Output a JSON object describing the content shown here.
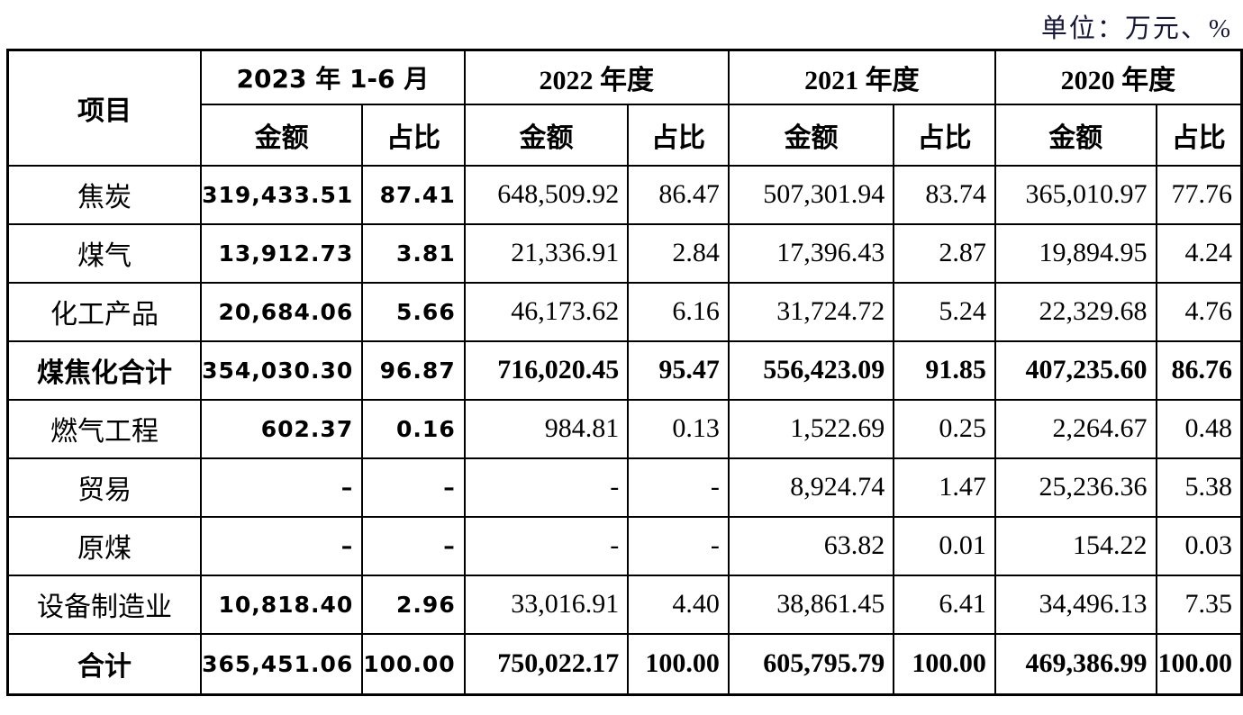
{
  "unit_label": "单位：万元、%",
  "table": {
    "item_header": "项目",
    "period_headers": [
      "2023 年 1-6 月",
      "2022 年度",
      "2021 年度",
      "2020 年度"
    ],
    "sub_headers": {
      "amount": "金额",
      "ratio": "占比"
    },
    "rows": [
      {
        "label": "焦炭",
        "bold": false,
        "cells": [
          "319,433.51",
          "87.41",
          "648,509.92",
          "86.47",
          "507,301.94",
          "83.74",
          "365,010.97",
          "77.76"
        ]
      },
      {
        "label": "煤气",
        "bold": false,
        "cells": [
          "13,912.73",
          "3.81",
          "21,336.91",
          "2.84",
          "17,396.43",
          "2.87",
          "19,894.95",
          "4.24"
        ]
      },
      {
        "label": "化工产品",
        "bold": false,
        "cells": [
          "20,684.06",
          "5.66",
          "46,173.62",
          "6.16",
          "31,724.72",
          "5.24",
          "22,329.68",
          "4.76"
        ]
      },
      {
        "label": "煤焦化合计",
        "bold": true,
        "cells": [
          "354,030.30",
          "96.87",
          "716,020.45",
          "95.47",
          "556,423.09",
          "91.85",
          "407,235.60",
          "86.76"
        ]
      },
      {
        "label": "燃气工程",
        "bold": false,
        "cells": [
          "602.37",
          "0.16",
          "984.81",
          "0.13",
          "1,522.69",
          "0.25",
          "2,264.67",
          "0.48"
        ]
      },
      {
        "label": "贸易",
        "bold": false,
        "cells": [
          "–",
          "–",
          "-",
          "-",
          "8,924.74",
          "1.47",
          "25,236.36",
          "5.38"
        ]
      },
      {
        "label": "原煤",
        "bold": false,
        "cells": [
          "–",
          "–",
          "-",
          "-",
          "63.82",
          "0.01",
          "154.22",
          "0.03"
        ]
      },
      {
        "label": "设备制造业",
        "bold": false,
        "cells": [
          "10,818.40",
          "2.96",
          "33,016.91",
          "4.40",
          "38,861.45",
          "6.41",
          "34,496.13",
          "7.35"
        ]
      },
      {
        "label": "合计",
        "bold": true,
        "cells": [
          "365,451.06",
          "100.00",
          "750,022.17",
          "100.00",
          "605,795.79",
          "100.00",
          "469,386.99",
          "100.00"
        ]
      }
    ]
  },
  "colors": {
    "border": "#000000",
    "text": "#000000",
    "unit_text": "#16163a",
    "background": "#ffffff"
  }
}
